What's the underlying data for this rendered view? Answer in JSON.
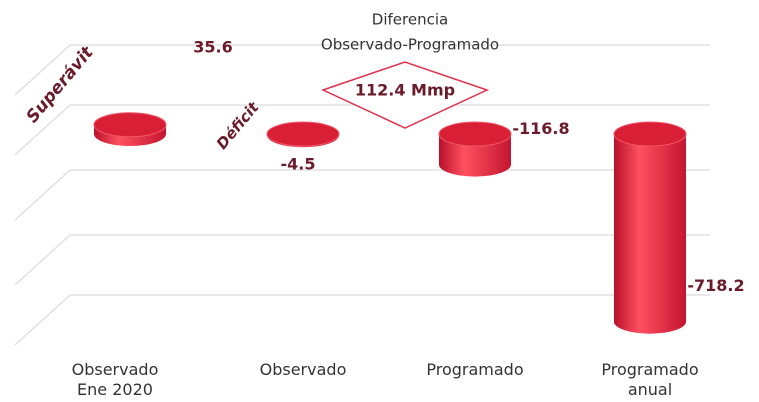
{
  "chart_data": {
    "type": "cylinder-bar",
    "categories": [
      "Observado Ene 2020",
      "Observado",
      "Programado",
      "Programado anual"
    ],
    "values": [
      35.6,
      -4.5,
      -116.8,
      -718.2
    ],
    "color": "#e8283c",
    "ylim": [
      -750,
      360
    ],
    "annotations": {
      "surplus": "Superávit",
      "deficit": "Déficit",
      "difference_title": [
        "Diferencia",
        "Observado-Programado"
      ],
      "difference_value": "112.4 Mmp"
    }
  }
}
